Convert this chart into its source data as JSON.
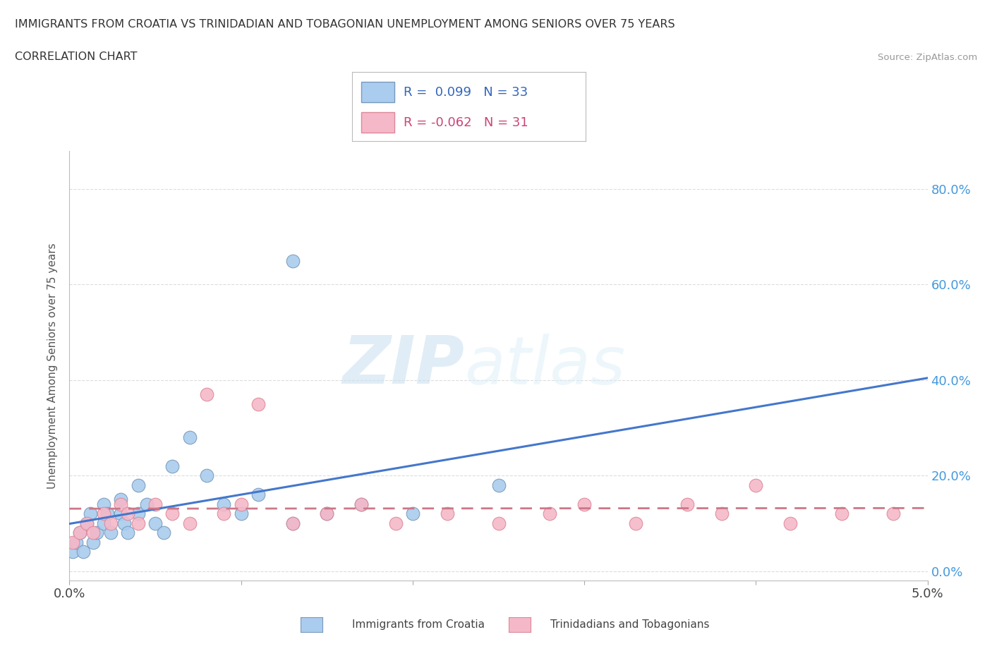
{
  "title_line1": "IMMIGRANTS FROM CROATIA VS TRINIDADIAN AND TOBAGONIAN UNEMPLOYMENT AMONG SENIORS OVER 75 YEARS",
  "title_line2": "CORRELATION CHART",
  "source_text": "Source: ZipAtlas.com",
  "ylabel": "Unemployment Among Seniors over 75 years",
  "xlim": [
    0.0,
    0.05
  ],
  "ylim": [
    -0.02,
    0.88
  ],
  "xticks": [
    0.0,
    0.01,
    0.02,
    0.03,
    0.04,
    0.05
  ],
  "yticks": [
    0.0,
    0.2,
    0.4,
    0.6,
    0.8
  ],
  "croatia_color": "#aaccee",
  "croatia_edge_color": "#7799bb",
  "tt_color": "#f5b8c8",
  "tt_edge_color": "#dd8899",
  "croatia_R": 0.099,
  "croatia_N": 33,
  "tt_R": -0.062,
  "tt_N": 31,
  "croatia_x": [
    0.0002,
    0.0004,
    0.0006,
    0.0008,
    0.001,
    0.0012,
    0.0014,
    0.0016,
    0.002,
    0.002,
    0.0022,
    0.0024,
    0.003,
    0.003,
    0.0032,
    0.0034,
    0.004,
    0.004,
    0.0045,
    0.005,
    0.0055,
    0.006,
    0.007,
    0.008,
    0.009,
    0.01,
    0.011,
    0.013,
    0.015,
    0.017,
    0.02,
    0.025,
    0.013
  ],
  "croatia_y": [
    0.04,
    0.06,
    0.08,
    0.04,
    0.1,
    0.12,
    0.06,
    0.08,
    0.14,
    0.1,
    0.12,
    0.08,
    0.15,
    0.12,
    0.1,
    0.08,
    0.18,
    0.12,
    0.14,
    0.1,
    0.08,
    0.22,
    0.28,
    0.2,
    0.14,
    0.12,
    0.16,
    0.1,
    0.12,
    0.14,
    0.12,
    0.18,
    0.65
  ],
  "tt_x": [
    0.0002,
    0.0006,
    0.001,
    0.0014,
    0.002,
    0.0024,
    0.003,
    0.0034,
    0.004,
    0.005,
    0.006,
    0.007,
    0.008,
    0.009,
    0.01,
    0.011,
    0.013,
    0.015,
    0.017,
    0.019,
    0.022,
    0.025,
    0.028,
    0.03,
    0.033,
    0.036,
    0.038,
    0.04,
    0.042,
    0.045,
    0.048
  ],
  "tt_y": [
    0.06,
    0.08,
    0.1,
    0.08,
    0.12,
    0.1,
    0.14,
    0.12,
    0.1,
    0.14,
    0.12,
    0.1,
    0.37,
    0.12,
    0.14,
    0.35,
    0.1,
    0.12,
    0.14,
    0.1,
    0.12,
    0.1,
    0.12,
    0.14,
    0.1,
    0.14,
    0.12,
    0.18,
    0.1,
    0.12,
    0.12
  ],
  "croatia_line_color": "#4477cc",
  "tt_line_color": "#cc7788",
  "watermark_zip": "ZIP",
  "watermark_atlas": "atlas",
  "background_color": "#ffffff",
  "grid_color": "#dddddd"
}
